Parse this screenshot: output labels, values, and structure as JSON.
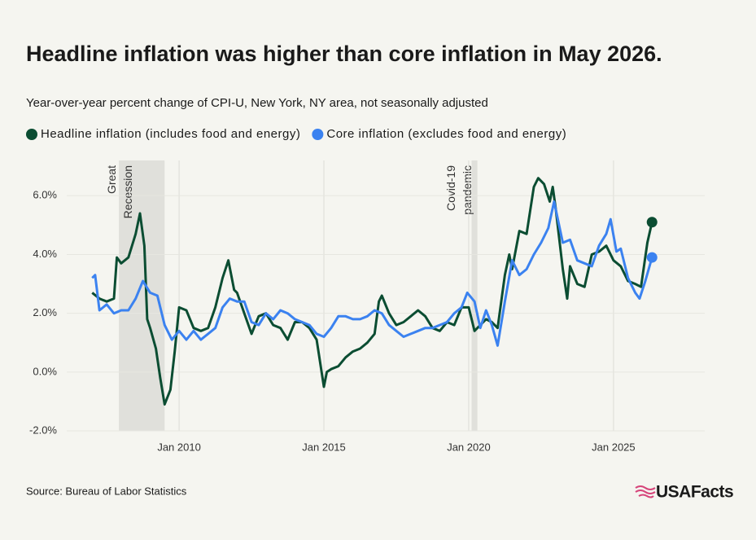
{
  "chart_data": {
    "type": "line",
    "title": "Headline inflation was higher than core inflation in May 2026.",
    "subtitle": "Year-over-year percent change of CPI-U, New York, NY area, not seasonally adjusted",
    "source": "Source: Bureau of Labor Statistics",
    "logo": "USAFacts",
    "xlim": [
      2006.12,
      2028.15
    ],
    "xticks": [
      {
        "value": 2010,
        "label": "Jan 2010"
      },
      {
        "value": 2015,
        "label": "Jan 2015"
      },
      {
        "value": 2020,
        "label": "Jan 2020"
      },
      {
        "value": 2025,
        "label": "Jan 2025"
      }
    ],
    "ylim": [
      -2.0,
      7.2
    ],
    "yticks": [
      {
        "value": -2,
        "label": "-2.0%"
      },
      {
        "value": 0,
        "label": "0.0%"
      },
      {
        "value": 2,
        "label": "2.0%"
      },
      {
        "value": 4,
        "label": "4.0%"
      },
      {
        "value": 6,
        "label": "6.0%"
      }
    ],
    "grid": true,
    "shaded_regions": [
      {
        "start": 2007.92,
        "end": 2009.5,
        "label": [
          "Great",
          "Recession"
        ]
      },
      {
        "start": 2020.1,
        "end": 2020.3,
        "label": [
          "Covid-19",
          "pandemic"
        ]
      }
    ],
    "series": [
      {
        "name": "Headline inflation (includes food and energy)",
        "color": "#0b4d32",
        "x": [
          2007.0,
          2007.25,
          2007.5,
          2007.75,
          2007.85,
          2008.0,
          2008.25,
          2008.5,
          2008.65,
          2008.8,
          2008.9,
          2009.0,
          2009.2,
          2009.35,
          2009.5,
          2009.7,
          2009.85,
          2010.0,
          2010.25,
          2010.5,
          2010.75,
          2011.0,
          2011.25,
          2011.5,
          2011.7,
          2011.9,
          2012.0,
          2012.25,
          2012.5,
          2012.75,
          2013.0,
          2013.25,
          2013.5,
          2013.75,
          2014.0,
          2014.25,
          2014.5,
          2014.75,
          2015.0,
          2015.1,
          2015.25,
          2015.5,
          2015.75,
          2016.0,
          2016.25,
          2016.5,
          2016.75,
          2016.9,
          2017.0,
          2017.25,
          2017.5,
          2017.75,
          2018.0,
          2018.25,
          2018.5,
          2018.75,
          2019.0,
          2019.25,
          2019.5,
          2019.75,
          2020.0,
          2020.2,
          2020.4,
          2020.6,
          2020.8,
          2021.0,
          2021.25,
          2021.4,
          2021.5,
          2021.75,
          2022.0,
          2022.25,
          2022.4,
          2022.6,
          2022.8,
          2022.9,
          2023.0,
          2023.25,
          2023.4,
          2023.5,
          2023.75,
          2024.0,
          2024.25,
          2024.5,
          2024.75,
          2025.0,
          2025.25,
          2025.5,
          2025.75,
          2025.95,
          2026.17,
          2026.33
        ],
        "values": [
          2.7,
          2.5,
          2.4,
          2.5,
          3.9,
          3.7,
          3.9,
          4.7,
          5.4,
          4.3,
          1.8,
          1.5,
          0.8,
          -0.2,
          -1.1,
          -0.6,
          0.7,
          2.2,
          2.1,
          1.5,
          1.4,
          1.5,
          2.2,
          3.2,
          3.8,
          2.8,
          2.7,
          2.0,
          1.3,
          1.9,
          2.0,
          1.6,
          1.5,
          1.1,
          1.7,
          1.7,
          1.5,
          1.1,
          -0.5,
          0.0,
          0.1,
          0.2,
          0.5,
          0.7,
          0.8,
          1.0,
          1.3,
          2.4,
          2.6,
          2.0,
          1.6,
          1.7,
          1.9,
          2.1,
          1.9,
          1.5,
          1.4,
          1.7,
          1.6,
          2.2,
          2.2,
          1.4,
          1.6,
          1.8,
          1.7,
          1.5,
          3.3,
          4.0,
          3.5,
          4.8,
          4.7,
          6.3,
          6.6,
          6.4,
          5.8,
          6.3,
          5.6,
          3.5,
          2.5,
          3.6,
          3.0,
          2.9,
          4.0,
          4.1,
          4.3,
          3.8,
          3.6,
          3.1,
          3.0,
          2.9,
          4.4,
          5.1
        ]
      },
      {
        "name": "Core inflation (excludes food and energy)",
        "color": "#3b82f0",
        "x": [
          2007.0,
          2007.1,
          2007.25,
          2007.5,
          2007.75,
          2008.0,
          2008.25,
          2008.5,
          2008.75,
          2009.0,
          2009.25,
          2009.5,
          2009.75,
          2010.0,
          2010.25,
          2010.5,
          2010.75,
          2011.0,
          2011.25,
          2011.5,
          2011.75,
          2012.0,
          2012.25,
          2012.5,
          2012.75,
          2013.0,
          2013.25,
          2013.5,
          2013.75,
          2014.0,
          2014.25,
          2014.5,
          2014.75,
          2015.0,
          2015.25,
          2015.5,
          2015.75,
          2016.0,
          2016.25,
          2016.5,
          2016.75,
          2017.0,
          2017.25,
          2017.5,
          2017.75,
          2018.0,
          2018.25,
          2018.5,
          2018.75,
          2019.0,
          2019.25,
          2019.5,
          2019.75,
          2019.95,
          2020.2,
          2020.4,
          2020.6,
          2020.8,
          2021.0,
          2021.25,
          2021.5,
          2021.75,
          2022.0,
          2022.25,
          2022.5,
          2022.75,
          2022.95,
          2023.25,
          2023.5,
          2023.75,
          2024.0,
          2024.25,
          2024.5,
          2024.75,
          2024.9,
          2025.1,
          2025.25,
          2025.5,
          2025.75,
          2025.9,
          2026.1,
          2026.33
        ],
        "values": [
          3.2,
          3.3,
          2.1,
          2.3,
          2.0,
          2.1,
          2.1,
          2.5,
          3.1,
          2.7,
          2.6,
          1.6,
          1.1,
          1.4,
          1.1,
          1.4,
          1.1,
          1.3,
          1.5,
          2.2,
          2.5,
          2.4,
          2.4,
          1.7,
          1.6,
          2.0,
          1.8,
          2.1,
          2.0,
          1.8,
          1.7,
          1.6,
          1.3,
          1.2,
          1.5,
          1.9,
          1.9,
          1.8,
          1.8,
          1.9,
          2.1,
          2.0,
          1.6,
          1.4,
          1.2,
          1.3,
          1.4,
          1.5,
          1.5,
          1.6,
          1.7,
          2.0,
          2.2,
          2.7,
          2.4,
          1.5,
          2.1,
          1.6,
          0.9,
          2.4,
          3.8,
          3.3,
          3.5,
          4.0,
          4.4,
          4.9,
          5.8,
          4.4,
          4.5,
          3.8,
          3.7,
          3.6,
          4.3,
          4.7,
          5.2,
          4.1,
          4.2,
          3.2,
          2.7,
          2.5,
          3.1,
          3.9
        ]
      }
    ]
  }
}
